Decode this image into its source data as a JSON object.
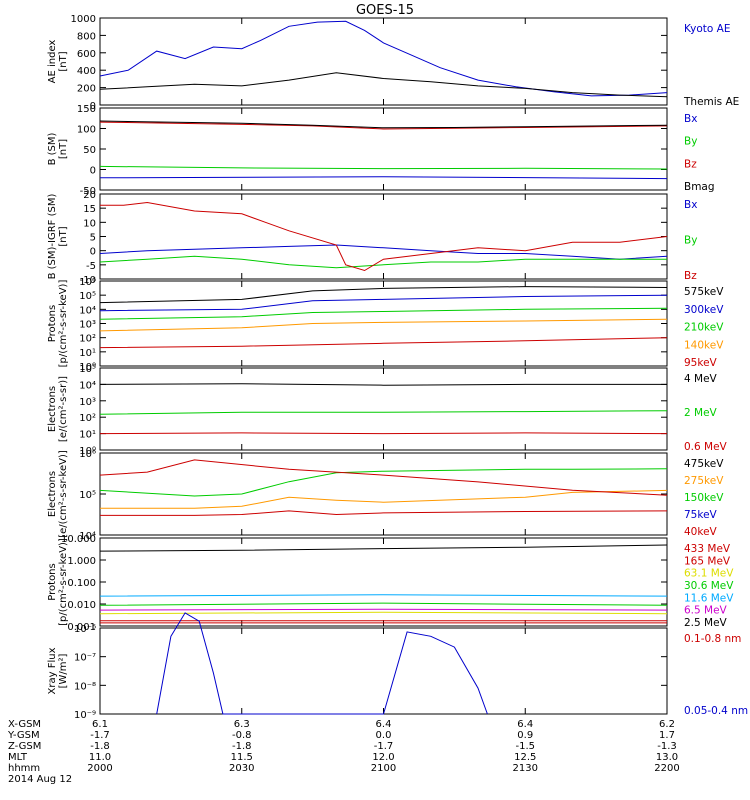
{
  "title": "GOES-15",
  "colors": {
    "black": "#000000",
    "red": "#cc0000",
    "green": "#00cc00",
    "blue": "#0000cc",
    "orange": "#ff9900",
    "yellow": "#dddd00",
    "cyan": "#00aaff",
    "magenta": "#cc00cc"
  },
  "chart_data": [
    {
      "type": "line",
      "ylabel": "AE index\n[nT]",
      "yscale": "linear",
      "ylim": [
        0,
        1050
      ],
      "yticks": [
        "0",
        "200",
        "400",
        "600",
        "800",
        "1000"
      ],
      "series": [
        {
          "name": "Kyoto AE",
          "color": "blue",
          "x": [
            0,
            6,
            12,
            18,
            24,
            30,
            34,
            40,
            46,
            52,
            56,
            60,
            66,
            72,
            80,
            88,
            96,
            104,
            112,
            120
          ],
          "y": [
            350,
            420,
            650,
            560,
            700,
            680,
            780,
            950,
            1000,
            1010,
            900,
            750,
            600,
            450,
            300,
            220,
            160,
            110,
            120,
            150
          ]
        },
        {
          "name": "Themis AE",
          "color": "black",
          "x": [
            0,
            10,
            20,
            30,
            40,
            50,
            60,
            70,
            80,
            90,
            100,
            110,
            120
          ],
          "y": [
            190,
            220,
            250,
            230,
            300,
            390,
            320,
            280,
            230,
            200,
            150,
            120,
            100
          ]
        }
      ]
    },
    {
      "type": "line",
      "ylabel": "B (SM)\n[nT]",
      "yscale": "linear",
      "ylim": [
        -60,
        155
      ],
      "yticks": [
        "-50",
        "0",
        "50",
        "100",
        "150"
      ],
      "series": [
        {
          "name": "Bx",
          "color": "blue",
          "x": [
            0,
            60,
            120
          ],
          "y": [
            -28,
            -25,
            -30
          ]
        },
        {
          "name": "By",
          "color": "green",
          "x": [
            0,
            30,
            60,
            90,
            120
          ],
          "y": [
            2,
            -2,
            -4,
            -3,
            -5
          ]
        },
        {
          "name": "Bz",
          "color": "red",
          "x": [
            0,
            30,
            45,
            60,
            75,
            90,
            120
          ],
          "y": [
            118,
            112,
            108,
            100,
            102,
            104,
            108
          ]
        },
        {
          "name": "Bmag",
          "color": "black",
          "x": [
            0,
            30,
            45,
            60,
            75,
            90,
            120
          ],
          "y": [
            121,
            115,
            110,
            103,
            104,
            106,
            110
          ]
        }
      ]
    },
    {
      "type": "line",
      "ylabel": "B (SM)-IGRF (SM)\n[nT]",
      "yscale": "linear",
      "ylim": [
        -10,
        20
      ],
      "yticks": [
        "-10",
        "-5",
        "0",
        "5",
        "10",
        "15",
        "20"
      ],
      "series": [
        {
          "name": "Bx",
          "color": "blue",
          "x": [
            0,
            10,
            20,
            30,
            40,
            50,
            60,
            70,
            80,
            90,
            100,
            110,
            120
          ],
          "y": [
            -1,
            0,
            0.5,
            1,
            1.5,
            2,
            1,
            0,
            -1,
            -1,
            -2,
            -3,
            -2
          ]
        },
        {
          "name": "By",
          "color": "green",
          "x": [
            0,
            10,
            20,
            30,
            40,
            50,
            60,
            70,
            80,
            90,
            100,
            110,
            120
          ],
          "y": [
            -4,
            -3,
            -2,
            -3,
            -5,
            -6,
            -5,
            -4,
            -4,
            -3,
            -3,
            -3,
            -3
          ]
        },
        {
          "name": "Bz",
          "color": "red",
          "x": [
            0,
            5,
            10,
            20,
            30,
            35,
            40,
            50,
            52,
            56,
            60,
            70,
            80,
            90,
            100,
            110,
            120
          ],
          "y": [
            16,
            16,
            17,
            14,
            13,
            10,
            7,
            2,
            -5,
            -7,
            -3,
            -1,
            1,
            0,
            3,
            3,
            5
          ]
        }
      ]
    },
    {
      "type": "line",
      "ylabel": "Protons\n[p/(cm²-s-sr-keV)]",
      "yscale": "log",
      "ylim": [
        1,
        1000000
      ],
      "yticks": [
        "10⁰",
        "10¹",
        "10²",
        "10³",
        "10⁴",
        "10⁵",
        "10⁶"
      ],
      "series": [
        {
          "name": "575keV",
          "color": "black",
          "x": [
            0,
            30,
            45,
            60,
            90,
            120
          ],
          "y": [
            30000,
            50000,
            200000,
            300000,
            400000,
            350000
          ]
        },
        {
          "name": "300keV",
          "color": "blue",
          "x": [
            0,
            30,
            45,
            60,
            90,
            120
          ],
          "y": [
            8000,
            10000,
            40000,
            50000,
            80000,
            100000
          ]
        },
        {
          "name": "210keV",
          "color": "green",
          "x": [
            0,
            30,
            45,
            60,
            90,
            120
          ],
          "y": [
            2000,
            3000,
            6000,
            7000,
            10000,
            12000
          ]
        },
        {
          "name": "140keV",
          "color": "orange",
          "x": [
            0,
            30,
            45,
            60,
            90,
            120
          ],
          "y": [
            300,
            500,
            1000,
            1200,
            1500,
            2000
          ]
        },
        {
          "name": "95keV",
          "color": "red",
          "x": [
            0,
            30,
            60,
            90,
            120
          ],
          "y": [
            20,
            25,
            40,
            60,
            100
          ]
        }
      ]
    },
    {
      "type": "line",
      "ylabel": "Electrons\n[e/(cm²-s-sr)]",
      "yscale": "log",
      "ylim": [
        1,
        100000
      ],
      "yticks": [
        "10⁰",
        "10¹",
        "10²",
        "10³",
        "10⁴",
        "10⁵"
      ],
      "series": [
        {
          "name": "4 MeV",
          "color": "black",
          "x": [
            0,
            30,
            60,
            90,
            120
          ],
          "y": [
            10000,
            11000,
            9000,
            10000,
            10000
          ]
        },
        {
          "name": "2 MeV",
          "color": "green",
          "x": [
            0,
            30,
            60,
            90,
            120
          ],
          "y": [
            150,
            200,
            200,
            220,
            250
          ]
        },
        {
          "name": "0.6 MeV",
          "color": "red",
          "x": [
            0,
            30,
            60,
            90,
            120
          ],
          "y": [
            10,
            11,
            10,
            11,
            10
          ]
        }
      ]
    },
    {
      "type": "line",
      "ylabel": "Electrons\n[e/(cm²-s-sr-keV)]",
      "yscale": "log",
      "ylim": [
        1000,
        10000000
      ],
      "yticks": [
        "10⁴",
        "10⁵",
        "10⁶"
      ],
      "series": [
        {
          "name": "475keV",
          "color": "black",
          "x": [
            0,
            120
          ],
          "y": [
            null,
            null
          ]
        },
        {
          "name": "275keV",
          "color": "orange",
          "x": [
            0,
            20,
            30,
            40,
            50,
            60,
            90,
            100,
            120
          ],
          "y": [
            20000,
            20000,
            25000,
            70000,
            50000,
            40000,
            70000,
            120000,
            150000
          ]
        },
        {
          "name": "150keV",
          "color": "green",
          "x": [
            0,
            20,
            30,
            40,
            50,
            60,
            90,
            100,
            120
          ],
          "y": [
            150000,
            80000,
            100000,
            400000,
            1100000,
            1300000,
            1600000,
            1600000,
            1700000
          ]
        },
        {
          "name": "75keV",
          "color": "blue",
          "x": [
            0,
            120
          ],
          "y": [
            null,
            null
          ]
        },
        {
          "name": "40keV",
          "color": "red",
          "x": [
            0,
            20,
            30,
            40,
            50,
            60,
            90,
            120
          ],
          "y": [
            9000,
            9000,
            10000,
            15000,
            10000,
            12000,
            14000,
            15000
          ]
        }
      ]
    },
    {
      "type": "line",
      "ylabel": "Protons\n[p/(cm²-s-sr-keV)]",
      "yscale": "log",
      "ylim": [
        0.001,
        100
      ],
      "yticks": [
        "0.001",
        "0.010",
        "0.100",
        "1.000",
        "10.000"
      ],
      "series": [
        {
          "name": "433 MeV",
          "color": "red",
          "x": [
            0,
            60,
            120
          ],
          "y": [
            0.0015,
            0.0015,
            0.0015
          ]
        },
        {
          "name": "165 MeV",
          "color": "red",
          "x": [
            0,
            60,
            120
          ],
          "y": [
            0.002,
            0.002,
            0.002
          ]
        },
        {
          "name": "63.1 MeV",
          "color": "yellow",
          "x": [
            0,
            60,
            120
          ],
          "y": [
            0.005,
            0.006,
            0.005
          ]
        },
        {
          "name": "30.6 MeV",
          "color": "green",
          "x": [
            0,
            60,
            120
          ],
          "y": [
            0.015,
            0.02,
            0.015
          ]
        },
        {
          "name": "11.6 MeV",
          "color": "cyan",
          "x": [
            0,
            60,
            120
          ],
          "y": [
            0.05,
            0.06,
            0.05
          ]
        },
        {
          "name": "6.5 MeV",
          "color": "magenta",
          "x": [
            0,
            60,
            120
          ],
          "y": [
            0.008,
            0.009,
            0.008
          ]
        },
        {
          "name": "2.5 MeV",
          "color": "black",
          "x": [
            0,
            30,
            60,
            90,
            120
          ],
          "y": [
            18,
            20,
            25,
            30,
            40
          ]
        }
      ]
    },
    {
      "type": "line",
      "ylabel": "Xray Flux\n[W/m²]",
      "yscale": "log",
      "ylim": [
        1e-09,
        1e-08
      ],
      "yticks": [
        "10⁻⁹",
        "10⁻⁸",
        "10⁻⁷",
        "10⁻⁶"
      ],
      "series": [
        {
          "name": "0.1-0.8 nm",
          "color": "red",
          "x": [
            0,
            10,
            20,
            40,
            60,
            80,
            100,
            120
          ],
          "y": [
            6e-07,
            6.5e-07,
            9e-07,
            7e-07,
            6e-07,
            5e-07,
            4e-07,
            3.5e-07
          ]
        },
        {
          "name": "0.05-0.4 nm",
          "color": "blue",
          "x": [
            12,
            15,
            18,
            21,
            24,
            26,
            60,
            65,
            70,
            75,
            80,
            82
          ],
          "y": [
            1e-09,
            8e-09,
            1.5e-08,
            1.2e-08,
            3e-09,
            1e-09,
            1e-09,
            9e-09,
            8e-09,
            6e-09,
            2e-09,
            1e-09
          ]
        }
      ]
    }
  ],
  "x_axis": {
    "rows": [
      "X-GSM",
      "Y-GSM",
      "Z-GSM",
      "MLT",
      "hhmm"
    ],
    "ticks": [
      [
        "6.1",
        "-1.7",
        "-1.8",
        "11.0",
        "2000"
      ],
      [
        "6.3",
        "-0.8",
        "-1.8",
        "11.5",
        "2030"
      ],
      [
        "6.4",
        "0.0",
        "-1.7",
        "12.0",
        "2100"
      ],
      [
        "6.4",
        "0.9",
        "-1.5",
        "12.5",
        "2130"
      ],
      [
        "6.2",
        "1.7",
        "-1.3",
        "13.0",
        "2200"
      ]
    ],
    "date": "2014 Aug 12"
  }
}
